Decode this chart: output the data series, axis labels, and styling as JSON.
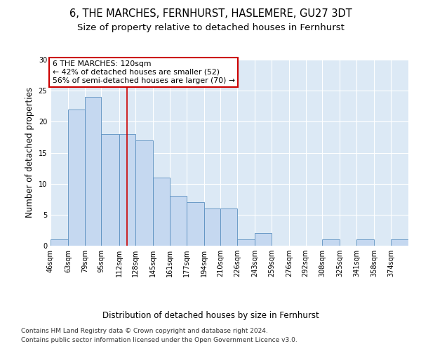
{
  "title1": "6, THE MARCHES, FERNHURST, HASLEMERE, GU27 3DT",
  "title2": "Size of property relative to detached houses in Fernhurst",
  "xlabel": "Distribution of detached houses by size in Fernhurst",
  "ylabel": "Number of detached properties",
  "footnote1": "Contains HM Land Registry data © Crown copyright and database right 2024.",
  "footnote2": "Contains public sector information licensed under the Open Government Licence v3.0.",
  "bins": [
    "46sqm",
    "63sqm",
    "79sqm",
    "95sqm",
    "112sqm",
    "128sqm",
    "145sqm",
    "161sqm",
    "177sqm",
    "194sqm",
    "210sqm",
    "226sqm",
    "243sqm",
    "259sqm",
    "276sqm",
    "292sqm",
    "308sqm",
    "325sqm",
    "341sqm",
    "358sqm",
    "374sqm"
  ],
  "values": [
    1,
    22,
    24,
    18,
    18,
    17,
    11,
    8,
    7,
    6,
    6,
    1,
    2,
    0,
    0,
    0,
    1,
    0,
    1,
    0,
    1
  ],
  "bar_color": "#c5d8f0",
  "bar_edge_color": "#5a8fc0",
  "property_line_x": 120,
  "property_line_color": "#cc0000",
  "annotation_text": "6 THE MARCHES: 120sqm\n← 42% of detached houses are smaller (52)\n56% of semi-detached houses are larger (70) →",
  "annotation_box_color": "#ffffff",
  "annotation_box_edge": "#cc0000",
  "ylim": [
    0,
    30
  ],
  "yticks": [
    0,
    5,
    10,
    15,
    20,
    25,
    30
  ],
  "bg_color": "#dce9f5",
  "fig_bg_color": "#ffffff",
  "title1_fontsize": 10.5,
  "title2_fontsize": 9.5,
  "annotation_fontsize": 7.8,
  "xlabel_fontsize": 8.5,
  "ylabel_fontsize": 8.5,
  "tick_fontsize": 7,
  "footnote_fontsize": 6.5
}
